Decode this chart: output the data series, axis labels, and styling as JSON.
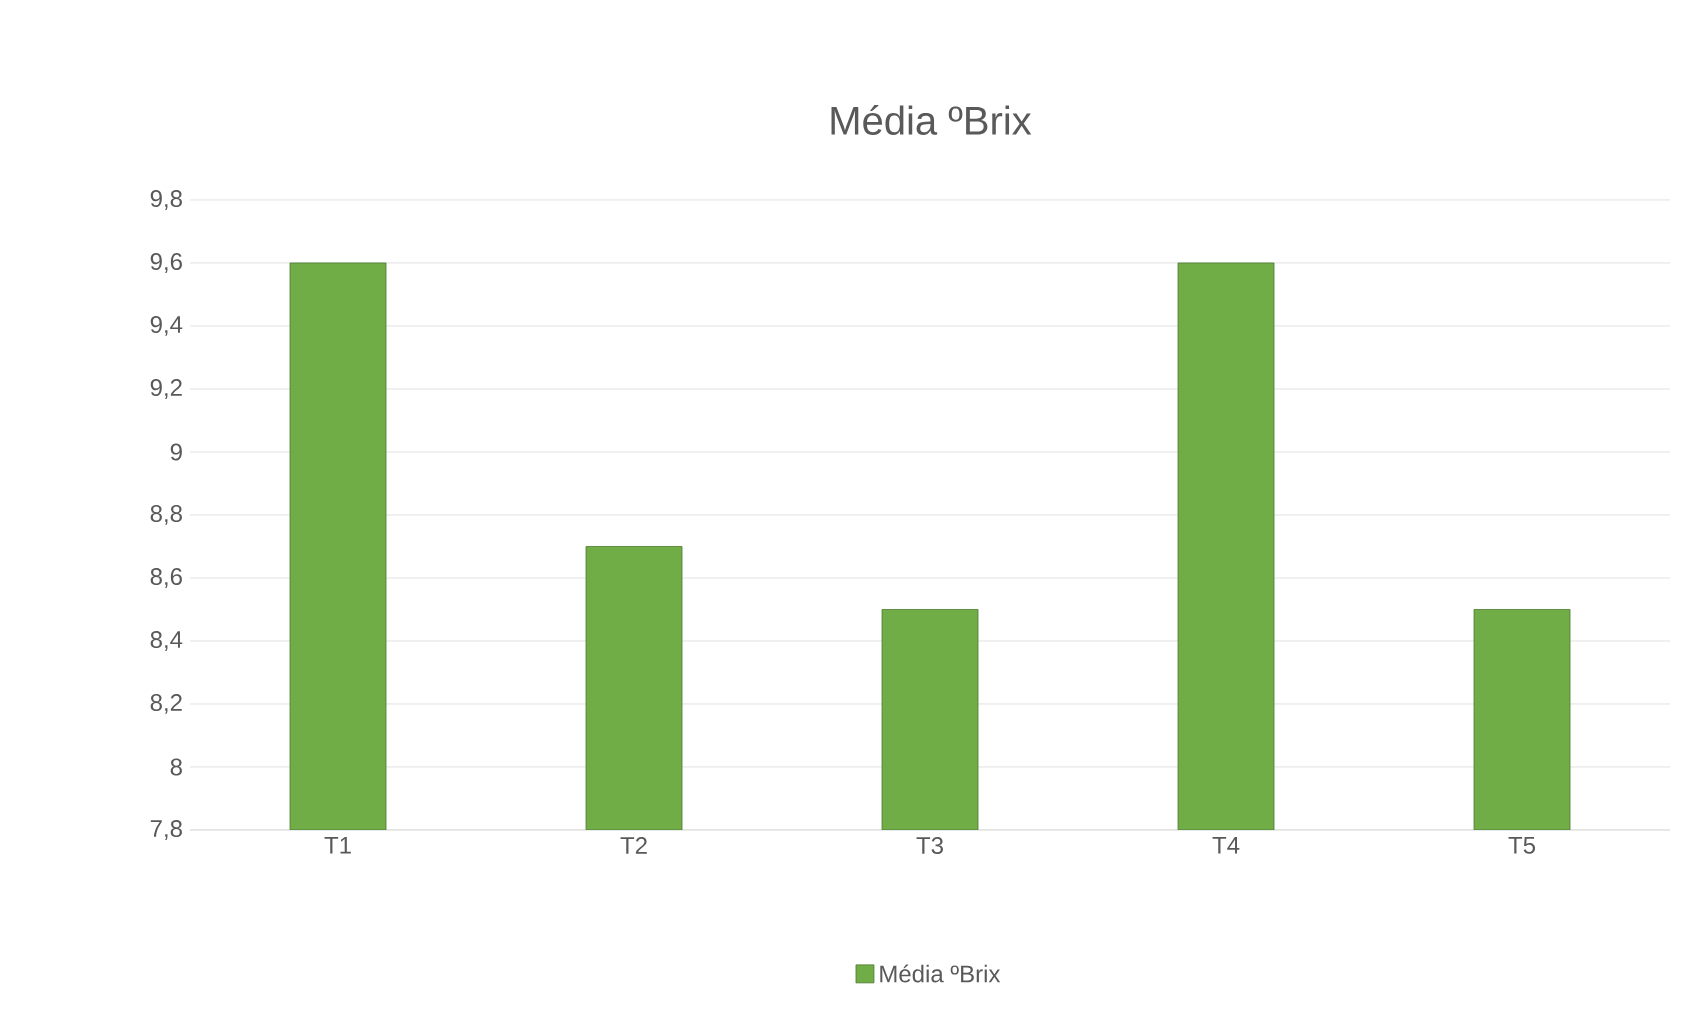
{
  "chart_data": {
    "type": "bar",
    "title": "Média ºBrix",
    "categories": [
      "T1",
      "T2",
      "T3",
      "T4",
      "T5"
    ],
    "series": [
      {
        "name": "Média ºBrix",
        "color": "#70ad47",
        "values": [
          9.6,
          8.7,
          8.5,
          9.6,
          8.5
        ]
      }
    ],
    "ylim": [
      7.8,
      9.8
    ],
    "yticks": [
      {
        "value": 7.8,
        "label": "7,8"
      },
      8,
      {
        "value": 8.2,
        "label": "8,2"
      },
      {
        "value": 8.4,
        "label": "8,4"
      },
      {
        "value": 8.6,
        "label": "8,6"
      },
      {
        "value": 8.8,
        "label": "8,8"
      },
      9,
      {
        "value": 9.2,
        "label": "9,2"
      },
      {
        "value": 9.4,
        "label": "9,4"
      },
      {
        "value": 9.6,
        "label": "9,6"
      },
      {
        "value": 9.8,
        "label": "9,8"
      }
    ],
    "grid": "y",
    "legend": "bottom"
  }
}
